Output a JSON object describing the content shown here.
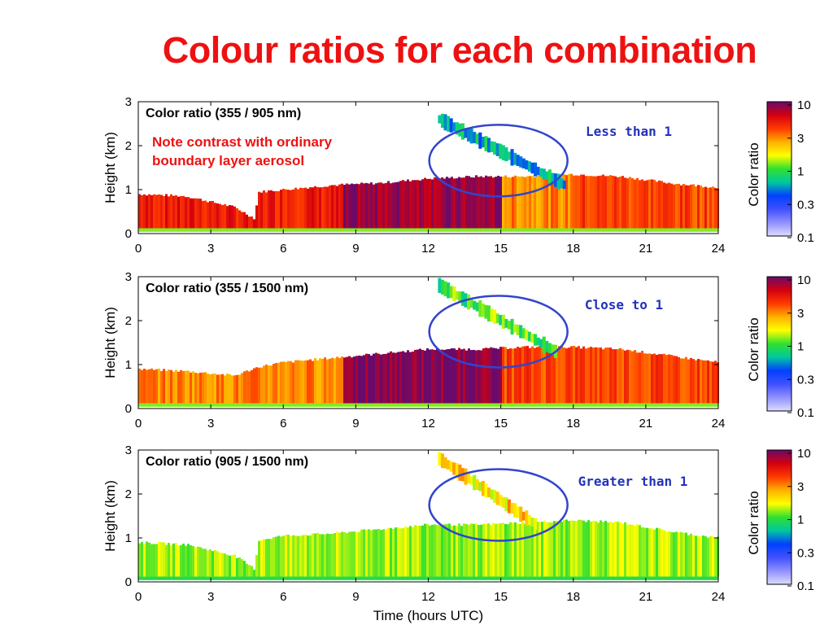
{
  "slide": {
    "title": "Colour ratios for each combination",
    "note_lines": [
      "Note contrast with ordinary",
      "boundary layer aerosol"
    ],
    "xlabel": "Time (hours UTC)"
  },
  "colorbar": {
    "label": "Color ratio",
    "ticks": [
      "10",
      "3",
      "1",
      "0.3",
      "0.1"
    ],
    "colors": [
      "#6a0a6a",
      "#d40010",
      "#ff3a00",
      "#ffb000",
      "#ffff00",
      "#30e030",
      "#00c8a0",
      "#0040ff",
      "#4050ff",
      "#9090ff",
      "#dcdcff"
    ]
  },
  "chart_data": [
    {
      "type": "heatmap",
      "title": "Color ratio (355 / 905 nm)",
      "ylabel": "Height (km)",
      "xlabel": "",
      "xlim": [
        0,
        24
      ],
      "ylim": [
        0,
        3
      ],
      "xticks": [
        "0",
        "3",
        "6",
        "9",
        "12",
        "15",
        "18",
        "21",
        "24"
      ],
      "yticks": [
        "0",
        "1",
        "2",
        "3"
      ],
      "callout": "Less than 1",
      "ellipse_center": [
        14.9,
        1.66
      ],
      "layer_top_km": [
        [
          0,
          0.9
        ],
        [
          2,
          0.85
        ],
        [
          4,
          0.6
        ],
        [
          4.8,
          0.35
        ],
        [
          5,
          0.95
        ],
        [
          6,
          1.0
        ],
        [
          8,
          1.1
        ],
        [
          10,
          1.15
        ],
        [
          12,
          1.25
        ],
        [
          14,
          1.3
        ],
        [
          16,
          1.3
        ],
        [
          18,
          1.35
        ],
        [
          20,
          1.3
        ],
        [
          22,
          1.15
        ],
        [
          24,
          1.05
        ]
      ],
      "cloud_band": {
        "x": [
          12.4,
          17.6
        ],
        "y_start": 2.6,
        "y_end": 1.1
      },
      "segments": [
        {
          "x": [
            0,
            8.5
          ],
          "ratio": 5
        },
        {
          "x": [
            8.5,
            15
          ],
          "ratio": 8
        },
        {
          "x": [
            15,
            18
          ],
          "ratio": 3
        },
        {
          "x": [
            18,
            24
          ],
          "ratio": 4
        }
      ],
      "cloud_ratio": 0.6
    },
    {
      "type": "heatmap",
      "title": "Color ratio (355 / 1500 nm)",
      "ylabel": "Height (km)",
      "xlabel": "",
      "xlim": [
        0,
        24
      ],
      "ylim": [
        0,
        3
      ],
      "xticks": [
        "0",
        "3",
        "6",
        "9",
        "12",
        "15",
        "18",
        "21",
        "24"
      ],
      "yticks": [
        "0",
        "1",
        "2",
        "3"
      ],
      "callout": "Close to 1",
      "ellipse_center": [
        14.9,
        1.75
      ],
      "layer_top_km": [
        [
          0,
          0.9
        ],
        [
          2,
          0.85
        ],
        [
          4,
          0.75
        ],
        [
          5,
          0.95
        ],
        [
          6,
          1.05
        ],
        [
          8,
          1.15
        ],
        [
          10,
          1.25
        ],
        [
          12,
          1.35
        ],
        [
          14,
          1.35
        ],
        [
          16,
          1.4
        ],
        [
          18,
          1.4
        ],
        [
          20,
          1.35
        ],
        [
          22,
          1.2
        ],
        [
          24,
          1.05
        ]
      ],
      "cloud_band": {
        "x": [
          12.4,
          17.2
        ],
        "y_start": 2.8,
        "y_end": 1.3
      },
      "segments": [
        {
          "x": [
            0,
            8.5
          ],
          "ratio": 3
        },
        {
          "x": [
            8.5,
            15
          ],
          "ratio": 9
        },
        {
          "x": [
            15,
            18
          ],
          "ratio": 4
        },
        {
          "x": [
            18,
            24
          ],
          "ratio": 4
        }
      ],
      "cloud_ratio": 1
    },
    {
      "type": "heatmap",
      "title": "Color ratio (905 / 1500 nm)",
      "ylabel": "Height (km)",
      "xlabel": "Time (hours UTC)",
      "xlim": [
        0,
        24
      ],
      "ylim": [
        0,
        3
      ],
      "xticks": [
        "0",
        "3",
        "6",
        "9",
        "12",
        "15",
        "18",
        "21",
        "24"
      ],
      "yticks": [
        "0",
        "1",
        "2",
        "3"
      ],
      "callout": "Greater than 1",
      "ellipse_center": [
        14.9,
        1.75
      ],
      "layer_top_km": [
        [
          0,
          0.9
        ],
        [
          2,
          0.85
        ],
        [
          4,
          0.6
        ],
        [
          4.8,
          0.3
        ],
        [
          5,
          0.95
        ],
        [
          6,
          1.05
        ],
        [
          8,
          1.1
        ],
        [
          10,
          1.2
        ],
        [
          12,
          1.3
        ],
        [
          14,
          1.3
        ],
        [
          16,
          1.35
        ],
        [
          18,
          1.4
        ],
        [
          20,
          1.35
        ],
        [
          22,
          1.15
        ],
        [
          24,
          1.0
        ]
      ],
      "cloud_band": {
        "x": [
          12.4,
          16.4
        ],
        "y_start": 2.8,
        "y_end": 1.3
      },
      "segments": [
        {
          "x": [
            0,
            24
          ],
          "ratio": 1.3
        }
      ],
      "cloud_ratio": 2
    }
  ]
}
